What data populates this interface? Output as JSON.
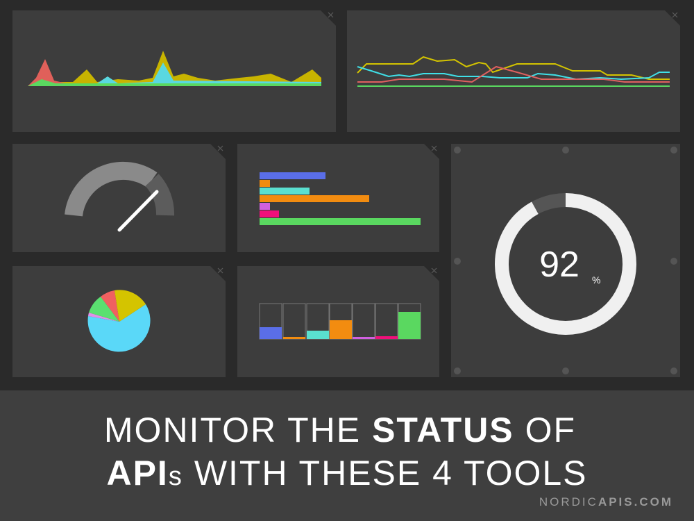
{
  "headline": {
    "line1": {
      "start": "MONITOR THE",
      "bold": "STATUS",
      "end": "OF"
    },
    "line2": {
      "bold": "API",
      "small": "s",
      "end": "WITH THESE 4 TOOLS"
    }
  },
  "ring": {
    "value": 92,
    "unit": "%"
  },
  "footer": {
    "light": "NORDIC",
    "bold": "APIS.COM"
  }
}
